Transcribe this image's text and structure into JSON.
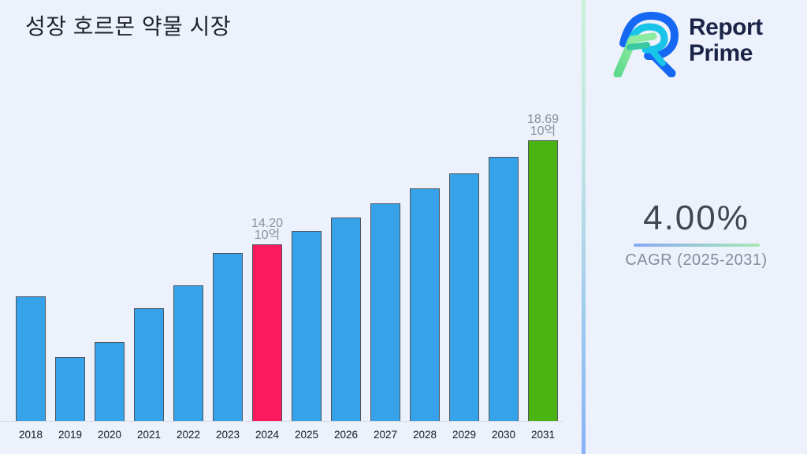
{
  "page": {
    "background": "#ECF1FB"
  },
  "title": "성장 호르몬 약물 시장",
  "brand": {
    "name_line1": "Report",
    "name_line2": "Prime",
    "text_color": "#1B2447",
    "mark_colors": {
      "blue": "#1668F2",
      "cyan": "#18C4E8",
      "mint": "#8DEBA1",
      "teal": "#3BC9A1"
    }
  },
  "cagr_panel": {
    "value": "4.00%",
    "label": "CAGR (2025-2031)",
    "underline_gradient": [
      "#87ABF2",
      "#A9E8B5"
    ]
  },
  "chart_data": {
    "type": "bar",
    "title": "성장 호르몬 약물 시장",
    "unit_label": "10억",
    "categories": [
      "2018",
      "2019",
      "2020",
      "2021",
      "2022",
      "2023",
      "2024",
      "2025",
      "2026",
      "2027",
      "2028",
      "2029",
      "2030",
      "2031"
    ],
    "values": [
      11.95,
      9.35,
      10.0,
      11.45,
      12.45,
      13.85,
      14.2,
      14.77,
      15.36,
      15.97,
      16.61,
      17.27,
      17.96,
      18.69
    ],
    "annotations": [
      {
        "category": "2024",
        "lines": [
          "14.20",
          "10억"
        ]
      },
      {
        "category": "2031",
        "lines": [
          "18.69",
          "10억"
        ]
      }
    ],
    "colors": {
      "default": "#36A2E9",
      "2024": "#FB1A60",
      "2031": "#4CB412",
      "border": "#4E545C"
    },
    "y_axis_start": 6.6,
    "ylim": [
      6.6,
      19.5
    ],
    "grid": false,
    "legend": "none",
    "xlabel": "",
    "ylabel": ""
  }
}
